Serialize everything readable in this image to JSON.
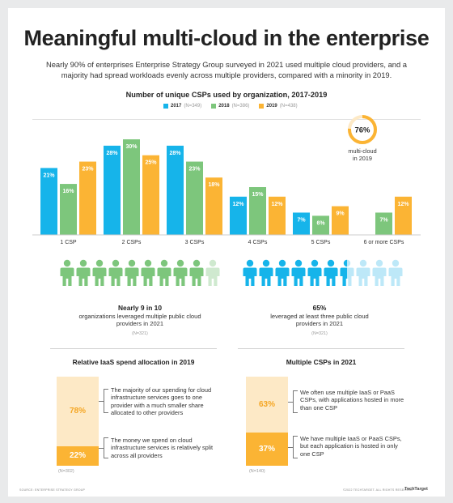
{
  "header": {
    "title": "Meaningful multi-cloud in the enterprise",
    "subtitle": "Nearly 90% of enterprises Enterprise Strategy Group surveyed in 2021 used multiple cloud providers, and a majority had spread workloads evenly across multiple providers, compared with a minority in 2019."
  },
  "colors": {
    "y2017": "#16b4ea",
    "y2018": "#7dc67c",
    "y2019": "#fbb434",
    "peopleGreen": "#7dc67c",
    "peopleGreenLight": "#cfe9cf",
    "peopleBlue": "#16b4ea",
    "peopleBlueLight": "#bde8f8",
    "lightOrange": "#fde9c6"
  },
  "chart_data": [
    {
      "type": "bar",
      "title": "Number of unique CSPs used by organization, 2017-2019",
      "categories": [
        "1 CSP",
        "2 CSPs",
        "3 CSPs",
        "4 CSPs",
        "5 CSPs",
        "6 or more CSPs"
      ],
      "series": [
        {
          "name": "2017",
          "n": "(N=349)",
          "values": [
            21,
            28,
            28,
            12,
            7,
            null
          ],
          "labels": [
            "21%",
            "28%",
            "28%",
            "12%",
            "7%",
            ""
          ]
        },
        {
          "name": "2018",
          "n": "(N=386)",
          "values": [
            16,
            30,
            23,
            15,
            6,
            7
          ],
          "labels": [
            "16%",
            "30%",
            "23%",
            "15%",
            "6%",
            "7%"
          ]
        },
        {
          "name": "2019",
          "n": "(N=438)",
          "values": [
            23,
            25,
            18,
            12,
            9,
            12
          ],
          "labels": [
            "23%",
            "25%",
            "18%",
            "12%",
            "9%",
            "12%"
          ]
        }
      ],
      "ylim": [
        0,
        30
      ],
      "legend": "top-center"
    },
    {
      "type": "pie",
      "title": "Relative IaaS spend allocation in 2019",
      "categories": [
        "The majority of our spending for cloud infrastructure services goes to one provider with a much smaller share allocated to other providers",
        "The money we spend on cloud infrastructure services is relatively split across all providers"
      ],
      "values": [
        78,
        22
      ],
      "labels": [
        "78%",
        "22%"
      ],
      "n": "(N=302)"
    },
    {
      "type": "pie",
      "title": "Multiple CSPs in 2021",
      "categories": [
        "We often use multiple IaaS or PaaS CSPs, with applications hosted in more than one CSP",
        "We have multiple IaaS or PaaS CSPs, but each application is hosted in only one CSP"
      ],
      "values": [
        63,
        37
      ],
      "labels": [
        "63%",
        "37%"
      ],
      "n": "(N=140)"
    }
  ],
  "multicloud": {
    "value": 76,
    "label": "76%",
    "caption_line1": "multi-cloud",
    "caption_line2": "in 2019"
  },
  "stat_left": {
    "filled": 9,
    "total": 10,
    "headline": "Nearly 9 in 10",
    "line1": "organizations leveraged multiple public cloud",
    "line2": "providers in 2021",
    "n": "(N=321)"
  },
  "stat_right": {
    "filled": 6.5,
    "total": 10,
    "headline": "65%",
    "line1": "leveraged at least three public cloud",
    "line2": "providers in 2021",
    "n": "(N=321)"
  },
  "footer": {
    "source": "SOURCE: ENTERPRISE STRATEGY GROUP",
    "rights": "©2022 TECHTARGET. ALL RIGHTS RESERVED",
    "brand": "TechTarget"
  }
}
